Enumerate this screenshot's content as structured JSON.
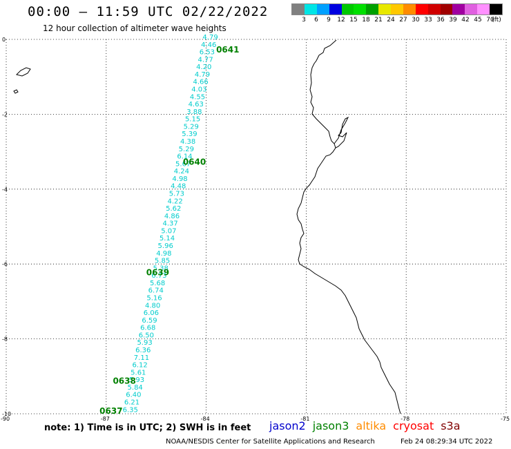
{
  "header": {
    "title": "00:00 — 11:59 UTC 02/22/2022",
    "subtitle": "12 hour collection of altimeter wave heights"
  },
  "legend": {
    "colors": [
      "#808080",
      "#00e5e5",
      "#00a0ff",
      "#0000e0",
      "#00c800",
      "#00e000",
      "#00a000",
      "#e8e800",
      "#ffc800",
      "#ff8c00",
      "#ff0000",
      "#d00000",
      "#a00000",
      "#a000a0",
      "#e060e0",
      "#ff90ff",
      "#000000"
    ],
    "labels": [
      "3",
      "6",
      "9",
      "12",
      "15",
      "18",
      "21",
      "24",
      "27",
      "30",
      "33",
      "36",
      "39",
      "42",
      "45",
      "70"
    ],
    "unit": "(ft)"
  },
  "map": {
    "lat_ticks": [
      "0",
      "-2",
      "-4",
      "-6",
      "-8",
      "-10"
    ],
    "lon_ticks": [
      "-90",
      "-87",
      "-84",
      "-81",
      "-78",
      "-75"
    ],
    "lon_range": [
      -90,
      -75
    ],
    "lat_range": [
      -10,
      0
    ]
  },
  "track": {
    "color": "#00cccc",
    "start": {
      "lon": -86.3,
      "lat": -9.95
    },
    "end": {
      "lon": -83.9,
      "lat": 0.0
    },
    "values": [
      "6.35",
      "6.21",
      "6.40",
      "5.84",
      "5.93",
      "5.61",
      "6.12",
      "7.11",
      "6.36",
      "5.93",
      "6.50",
      "6.68",
      "6.59",
      "6.06",
      "4.80",
      "5.16",
      "6.74",
      "5.68",
      "6.73",
      "5.38",
      "5.85",
      "4.98",
      "5.96",
      "5.14",
      "5.07",
      "4.37",
      "4.86",
      "5.62",
      "4.22",
      "5.73",
      "4.48",
      "4.98",
      "4.24",
      "5.67",
      "6.14",
      "5.29",
      "4.38",
      "5.39",
      "5.29",
      "5.15",
      "3.88",
      "4.63",
      "4.55",
      "4.03",
      "4.66",
      "4.79",
      "4.20",
      "4.77",
      "6.53",
      "4.46",
      "4.79"
    ],
    "time_labels": [
      {
        "text": "0641",
        "lon": -83.7,
        "lat": -0.35
      },
      {
        "text": "0640",
        "lon": -84.7,
        "lat": -3.35
      },
      {
        "text": "0639",
        "lon": -85.8,
        "lat": -6.3
      },
      {
        "text": "0638",
        "lon": -86.8,
        "lat": -9.2
      },
      {
        "text": "0637",
        "lon": -87.2,
        "lat": -10.0
      }
    ],
    "time_label_color": "#008000"
  },
  "note": "note:  1) Time is in UTC;  2) SWH is in feet",
  "satellites": [
    {
      "name": "jason2",
      "color": "#0000cc"
    },
    {
      "name": "jason3",
      "color": "#008000"
    },
    {
      "name": "altika",
      "color": "#ff8c00"
    },
    {
      "name": "cryosat",
      "color": "#ff0000"
    },
    {
      "name": "s3a",
      "color": "#800000"
    }
  ],
  "credit": "NOAA/NESDIS Center for Satellite Applications and Research",
  "timestamp": "Feb 24 08:29:34 UTC 2022"
}
